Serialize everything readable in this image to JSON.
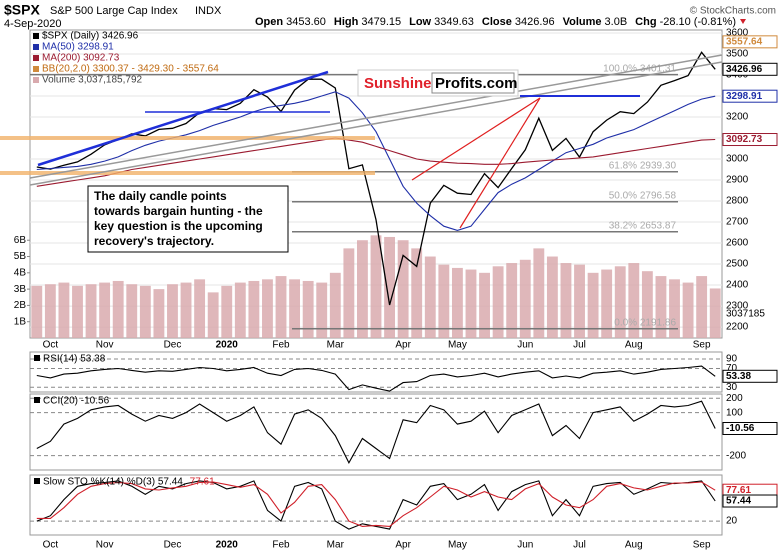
{
  "header": {
    "symbol": "$SPX",
    "name": "S&P 500 Large Cap Index",
    "exchange": "INDX",
    "date": "4-Sep-2020",
    "stats": [
      {
        "label": "Open",
        "value": "3453.60"
      },
      {
        "label": "High",
        "value": "3479.15"
      },
      {
        "label": "Low",
        "value": "3349.63"
      },
      {
        "label": "Close",
        "value": "3426.96"
      },
      {
        "label": "Volume",
        "value": "3.0B"
      },
      {
        "label": "Chg",
        "value": "-28.10 (-0.81%)"
      }
    ],
    "brand": "© StockCharts.com"
  },
  "logo": {
    "part1": "Sunshine",
    "part2": "Profits.com"
  },
  "annotation": [
    "The daily candle points",
    "towards bargain hunting - the",
    "key question is the upcoming",
    "recovery's trajectory."
  ],
  "chart_data": [
    {
      "type": "line",
      "categories": [
        null,
        "Oct",
        null,
        null,
        null,
        "Nov",
        null,
        null,
        null,
        null,
        "Dec",
        null,
        null,
        null,
        "2020",
        null,
        null,
        null,
        "Feb",
        null,
        null,
        null,
        "Mar",
        null,
        null,
        null,
        null,
        "Apr",
        null,
        null,
        null,
        "May",
        null,
        null,
        null,
        null,
        "Jun",
        null,
        null,
        null,
        "Jul",
        null,
        null,
        null,
        "Aug",
        null,
        null,
        null,
        null,
        "Sep",
        null
      ],
      "ylim": [
        2148,
        3614
      ],
      "yticks": [
        2200,
        2300,
        2400,
        2500,
        2600,
        2700,
        2800,
        2900,
        3000,
        3100,
        3200,
        3300,
        3400,
        3500,
        3600
      ],
      "grid": true,
      "y2lim": [
        0,
        18.9
      ],
      "y2ticks": [
        {
          "value": 1,
          "label": "1B"
        },
        {
          "value": 2,
          "label": "2B"
        },
        {
          "value": 3,
          "label": "3B"
        },
        {
          "value": 4,
          "label": "4B"
        },
        {
          "value": 5,
          "label": "5B"
        },
        {
          "value": 6,
          "label": "6B"
        }
      ],
      "series": [
        {
          "name": "$SPX (Daily) 3426.96",
          "color": "#000000",
          "values": [
            2962,
            2952,
            2970,
            2986,
            3023,
            3067,
            3093,
            3120,
            3110,
            3141,
            3146,
            3169,
            3221,
            3240,
            3235,
            3265,
            3330,
            3295,
            3226,
            3328,
            3380,
            3380,
            3338,
            2954,
            2972,
            2711,
            2305,
            2541,
            2489,
            2790,
            2875,
            2837,
            2831,
            2930,
            2864,
            2955,
            3044,
            3194,
            3041,
            3098,
            3009,
            3130,
            3185,
            3225,
            3216,
            3271,
            3351,
            3373,
            3397,
            3508,
            3426.96
          ]
        },
        {
          "name": "MA(50) 3298.91",
          "color": "#1f2fa8",
          "values": [
            2950,
            2955,
            2960,
            2965,
            2975,
            2990,
            3010,
            3040,
            3065,
            3085,
            3100,
            3115,
            3135,
            3160,
            3180,
            3200,
            3225,
            3245,
            3255,
            3265,
            3280,
            3300,
            3320,
            3290,
            3220,
            3130,
            3000,
            2870,
            2790,
            2730,
            2680,
            2660,
            2680,
            2760,
            2840,
            2880,
            2910,
            2950,
            2990,
            3030,
            3050,
            3070,
            3100,
            3120,
            3140,
            3170,
            3200,
            3230,
            3260,
            3285,
            3298.91
          ]
        },
        {
          "name": "MA(200) 3092.73",
          "color": "#9b1b30",
          "values": [
            2870,
            2880,
            2890,
            2900,
            2910,
            2920,
            2935,
            2950,
            2960,
            2970,
            2980,
            2990,
            3000,
            3010,
            3020,
            3030,
            3040,
            3050,
            3060,
            3070,
            3080,
            3090,
            3100,
            3090,
            3080,
            3060,
            3040,
            3020,
            3000,
            2990,
            2985,
            2980,
            2978,
            2975,
            2975,
            2978,
            2985,
            2990,
            2995,
            3000,
            3005,
            3010,
            3020,
            3030,
            3040,
            3050,
            3060,
            3070,
            3080,
            3090,
            3092.73
          ]
        },
        {
          "name": "Volume 3,037,185,792",
          "color": "#d9aaae",
          "axis": "y2",
          "values": [
            3.2,
            3.3,
            3.4,
            3.2,
            3.3,
            3.4,
            3.5,
            3.3,
            3.2,
            3.0,
            3.3,
            3.4,
            3.6,
            2.8,
            3.2,
            3.4,
            3.5,
            3.6,
            3.8,
            3.6,
            3.5,
            3.4,
            4.0,
            5.5,
            6.0,
            6.3,
            6.2,
            6.0,
            5.5,
            5.0,
            4.5,
            4.3,
            4.2,
            4.0,
            4.4,
            4.6,
            4.8,
            5.5,
            5.0,
            4.6,
            4.5,
            4.0,
            4.2,
            4.4,
            4.6,
            4.1,
            3.8,
            3.6,
            3.4,
            3.8,
            3.04
          ]
        }
      ],
      "bb_legend": "BB(20,2.0) 3300.37 - 3429.30 - 3557.64",
      "volume_label": 3037185,
      "right_labels": [
        {
          "value": 3557.64,
          "color": "#d08a3c"
        },
        {
          "value": 3426.96,
          "color": "#000000"
        },
        {
          "value": 3298.91,
          "color": "#1f2fa8"
        },
        {
          "value": 3092.73,
          "color": "#9b1b30"
        }
      ],
      "levels": [
        {
          "label": "100.0% 3401.31",
          "value": 3401.31
        },
        {
          "label": "61.8% 2939.30",
          "value": 2939.3
        },
        {
          "label": "50.0% 2796.58",
          "value": 2796.58
        },
        {
          "label": "38.2% 2653.87",
          "value": 2653.87
        },
        {
          "label": "0.0% 2191.86",
          "value": 2191.86
        }
      ]
    },
    {
      "type": "line",
      "ylim": [
        20,
        105
      ],
      "yticks": [
        30,
        70,
        90
      ],
      "series": [
        {
          "name": "RSI(14) 53.38",
          "color": "#000000",
          "values": [
            55,
            50,
            58,
            60,
            65,
            68,
            70,
            66,
            62,
            65,
            64,
            68,
            72,
            70,
            65,
            68,
            72,
            60,
            55,
            68,
            70,
            66,
            58,
            25,
            35,
            28,
            22,
            40,
            42,
            55,
            58,
            52,
            55,
            60,
            52,
            58,
            62,
            65,
            50,
            54,
            50,
            60,
            62,
            65,
            58,
            62,
            68,
            70,
            72,
            75,
            53.38
          ]
        }
      ],
      "right_labels": [
        {
          "value": 53.38,
          "color": "#000000"
        }
      ]
    },
    {
      "type": "line",
      "ylim": [
        -300,
        230
      ],
      "yticks": [
        -200,
        100,
        200
      ],
      "series": [
        {
          "name": "CCI(20) -10.56",
          "color": "#000000",
          "values": [
            -150,
            -100,
            20,
            60,
            120,
            140,
            150,
            90,
            40,
            80,
            60,
            100,
            160,
            100,
            40,
            80,
            140,
            -40,
            -120,
            90,
            120,
            60,
            -60,
            -250,
            -80,
            -150,
            -220,
            50,
            30,
            150,
            120,
            20,
            40,
            110,
            -40,
            80,
            120,
            160,
            -60,
            10,
            -80,
            100,
            120,
            140,
            40,
            90,
            150,
            140,
            150,
            180,
            -10.56
          ]
        }
      ],
      "right_labels": [
        {
          "value": -10.56,
          "color": "#000000"
        }
      ]
    },
    {
      "type": "line",
      "ylim": [
        -6,
        106
      ],
      "yticks": [
        20
      ],
      "series": [
        {
          "name": "Slow STO %K(14) %D(3) 57.44,",
          "color": "#000000",
          "values": [
            20,
            30,
            60,
            85,
            90,
            92,
            95,
            85,
            70,
            85,
            80,
            90,
            95,
            92,
            80,
            85,
            95,
            40,
            20,
            85,
            92,
            80,
            20,
            5,
            15,
            10,
            5,
            60,
            50,
            85,
            90,
            60,
            70,
            88,
            40,
            75,
            88,
            95,
            30,
            60,
            30,
            85,
            90,
            92,
            70,
            80,
            92,
            90,
            92,
            95,
            57.44
          ]
        },
        {
          "name": "77.61",
          "color": "#d0202a",
          "values": [
            25,
            25,
            45,
            70,
            85,
            90,
            92,
            90,
            80,
            78,
            82,
            85,
            92,
            93,
            88,
            83,
            88,
            70,
            35,
            55,
            85,
            88,
            60,
            20,
            10,
            12,
            10,
            30,
            45,
            65,
            85,
            78,
            65,
            75,
            65,
            60,
            80,
            90,
            65,
            50,
            45,
            60,
            85,
            90,
            82,
            78,
            85,
            91,
            91,
            93,
            77.61
          ]
        }
      ],
      "right_labels": [
        {
          "value": 77.61,
          "color": "#d0202a"
        },
        {
          "value": 57.44,
          "color": "#000000"
        }
      ]
    }
  ]
}
